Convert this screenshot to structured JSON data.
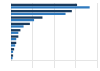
{
  "chart_data": {
    "type": "bar",
    "orientation": "horizontal",
    "categories": [
      null,
      null,
      null,
      null,
      null,
      null,
      null,
      null,
      null
    ],
    "series": [
      {
        "color": "#1a3a5c",
        "values": [
          63,
          58,
          30,
          18,
          9,
          7,
          5,
          3,
          2
        ]
      },
      {
        "color": "#2e7abf",
        "values": [
          75,
          52,
          22,
          12,
          7,
          5,
          4,
          2,
          1.5
        ]
      }
    ],
    "xlim": [
      0,
      82
    ],
    "xticks": [
      20.5,
      41,
      61.5,
      82
    ],
    "grid": true,
    "tick_labels": false
  }
}
